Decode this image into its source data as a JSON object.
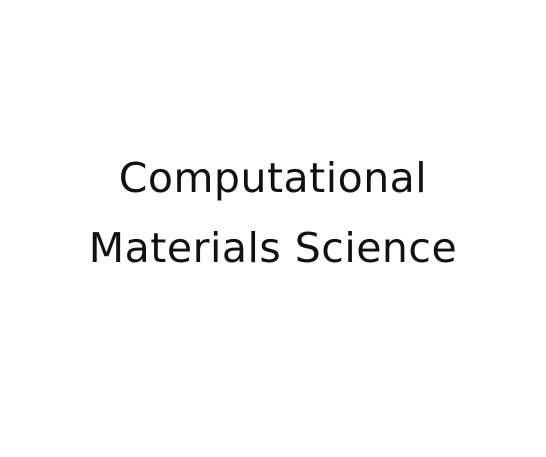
{
  "title": {
    "line1": "Computational",
    "line2": "Materials Science"
  },
  "colors": {
    "background": "#ffffff",
    "text": "#111111"
  }
}
